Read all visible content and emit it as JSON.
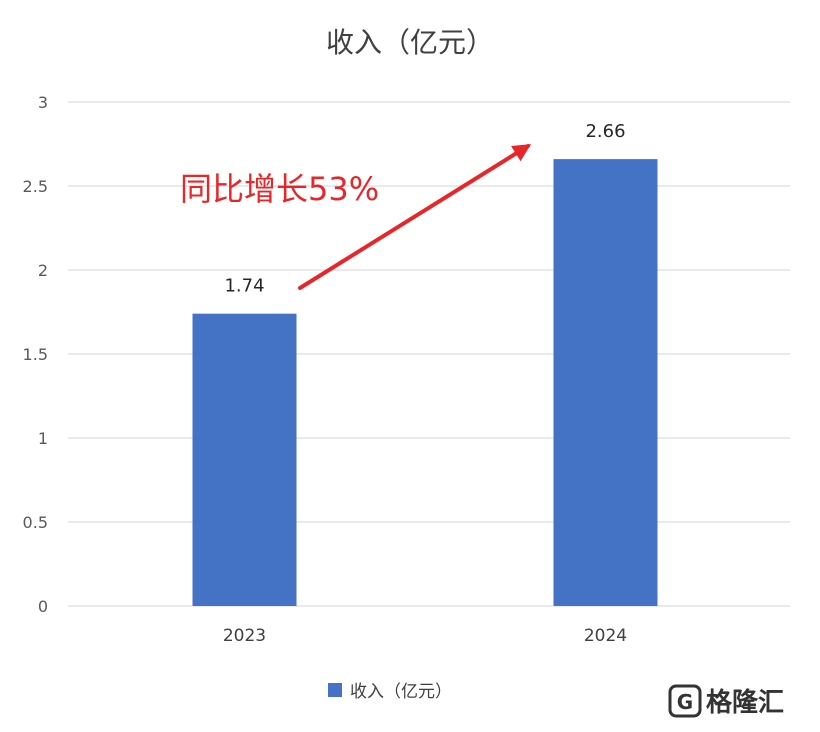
{
  "chart_data": {
    "type": "bar",
    "title": "收入（亿元）",
    "categories": [
      "2023",
      "2024"
    ],
    "series": [
      {
        "name": "收入（亿元）",
        "values": [
          1.74,
          2.66
        ]
      }
    ],
    "data_labels": [
      "1.74",
      "2.66"
    ],
    "yticks": [
      "0",
      "0.5",
      "1",
      "1.5",
      "2",
      "2.5",
      "3"
    ],
    "ylim": [
      0,
      3
    ],
    "grid": true,
    "legend_position": "bottom",
    "annotation": "同比增长53%",
    "colors": {
      "bar": "#4472c4",
      "grid": "#e3e3e3",
      "annotation": "#e8262a"
    }
  },
  "watermark": "格隆汇"
}
